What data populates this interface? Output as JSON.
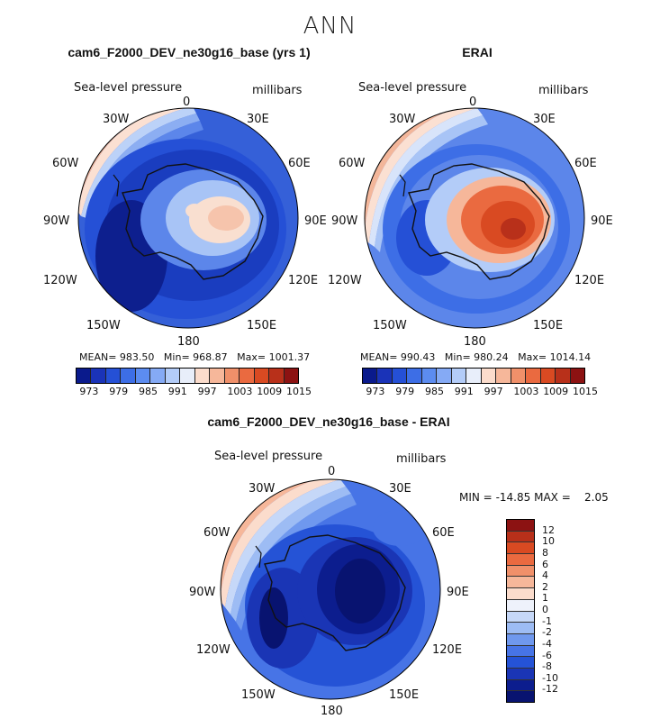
{
  "title": "ANN",
  "panels": {
    "model": {
      "title": "cam6_F2000_DEV_ne30g16_base (yrs 1)",
      "variable": "Sea-level pressure",
      "units": "millibars",
      "lon_labels": {
        "n": "0",
        "ne": "30E",
        "ene": "60E",
        "e": "90E",
        "ese": "120E",
        "se": "150E",
        "s": "180",
        "sw": "150W",
        "wsw": "120W",
        "w": "90W",
        "wnw": "60W",
        "nw": "30W"
      },
      "stats": {
        "mean_label": "MEAN=",
        "mean": "983.50",
        "min_label": "Min=",
        "min": "968.87",
        "max_label": "Max=",
        "max": "1001.37"
      }
    },
    "obs": {
      "title": "ERAI",
      "variable": "Sea-level pressure",
      "units": "millibars",
      "lon_labels": {
        "n": "0",
        "ne": "30E",
        "ene": "60E",
        "e": "90E",
        "ese": "120E",
        "se": "150E",
        "s": "180",
        "sw": "150W",
        "wsw": "120W",
        "w": "90W",
        "wnw": "60W",
        "nw": "30W"
      },
      "stats": {
        "mean_label": "MEAN=",
        "mean": "990.43",
        "min_label": "Min=",
        "min": "980.24",
        "max_label": "Max=",
        "max": "1014.14"
      }
    },
    "diff": {
      "title": "cam6_F2000_DEV_ne30g16_base - ERAI",
      "variable": "Sea-level pressure",
      "units": "millibars",
      "lon_labels": {
        "n": "0",
        "ne": "30E",
        "ene": "60E",
        "e": "90E",
        "ese": "120E",
        "se": "150E",
        "s": "180",
        "sw": "150W",
        "wsw": "120W",
        "w": "90W",
        "wnw": "60W",
        "nw": "30W"
      },
      "minmax": {
        "min_label": "MIN =",
        "min": "-14.85",
        "max_label": "MAX =",
        "max": "2.05"
      }
    }
  },
  "colorbar_abs": {
    "labels": [
      "973",
      "979",
      "985",
      "991",
      "997",
      "1003",
      "1009",
      "1015"
    ],
    "colors": [
      "#0a1a8c",
      "#1a33b8",
      "#2550d6",
      "#3d6ee6",
      "#5c8cf0",
      "#85aaf5",
      "#b3ccf8",
      "#e8eefa",
      "#fbdccc",
      "#f6b79a",
      "#f0906a",
      "#ea6a40",
      "#d94a22",
      "#b8301a",
      "#8c1212"
    ]
  },
  "colorbar_diff": {
    "labels": [
      "12",
      "10",
      "8",
      "6",
      "4",
      "2",
      "1",
      "0",
      "-1",
      "-2",
      "-4",
      "-6",
      "-8",
      "-10",
      "-12"
    ],
    "colors": [
      "#8c1212",
      "#b8301a",
      "#d94a22",
      "#ea6a40",
      "#f0906a",
      "#f6b79a",
      "#fbdccc",
      "#eef2fb",
      "#c6d8f8",
      "#9dbcf4",
      "#6f98ee",
      "#4774e6",
      "#2553d6",
      "#1a35b5",
      "#0c1d8e",
      "#081370"
    ]
  }
}
